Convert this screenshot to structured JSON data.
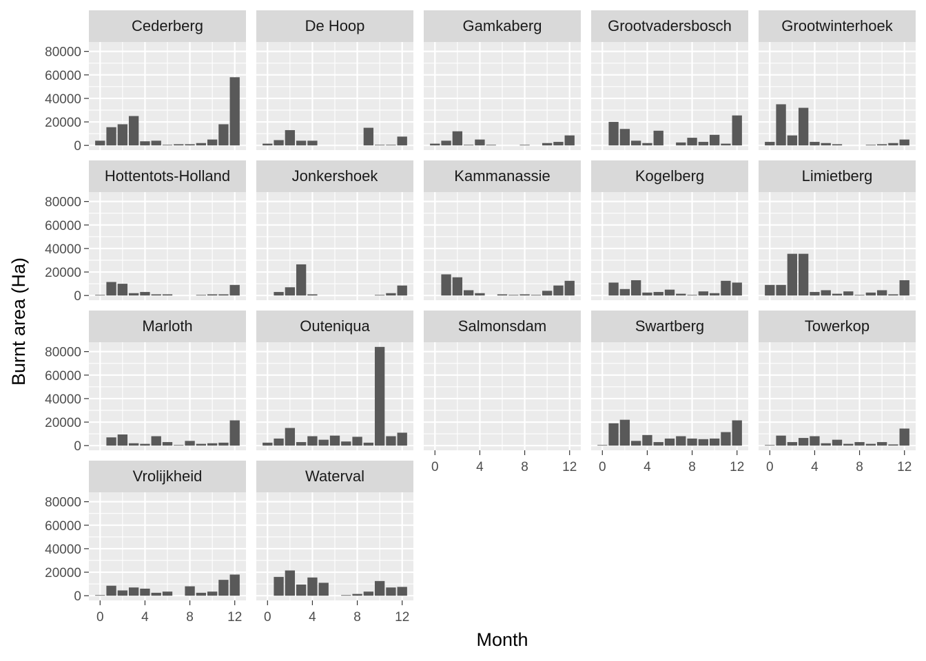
{
  "chart_data": {
    "type": "bar",
    "layout": "facet-grid",
    "xlabel": "Month",
    "ylabel": "Burnt area (Ha)",
    "xlim": [
      -1,
      13
    ],
    "ylim": [
      -4000,
      88000
    ],
    "x_ticks": [
      0,
      4,
      8,
      12
    ],
    "y_ticks": [
      0,
      20000,
      40000,
      60000,
      80000
    ],
    "grid": true,
    "colors": {
      "bar": "#595959",
      "panel": "#ebebeb",
      "strip": "#d9d9d9",
      "grid": "#ffffff"
    },
    "panels": [
      {
        "name": "Cederberg",
        "values": [
          4000,
          15500,
          18000,
          25000,
          3500,
          4000,
          500,
          1000,
          1000,
          2000,
          5000,
          18000,
          58000
        ]
      },
      {
        "name": "De Hoop",
        "values": [
          1500,
          4500,
          13000,
          4000,
          4000,
          0,
          0,
          0,
          0,
          15000,
          500,
          500,
          7500
        ]
      },
      {
        "name": "Gamkaberg",
        "values": [
          1500,
          4000,
          12000,
          500,
          5000,
          500,
          0,
          0,
          500,
          0,
          2000,
          3000,
          8500
        ]
      },
      {
        "name": "Grootvadersbosch",
        "values": [
          0,
          20000,
          14000,
          4000,
          2000,
          12500,
          0,
          2500,
          6500,
          3000,
          9000,
          1500,
          25500
        ]
      },
      {
        "name": "Grootwinterhoek",
        "values": [
          3000,
          35000,
          8500,
          32000,
          3000,
          2000,
          1000,
          0,
          0,
          500,
          1000,
          2000,
          5000
        ]
      },
      {
        "name": "Hottentots-Holland",
        "values": [
          500,
          11500,
          10000,
          2000,
          3000,
          1000,
          1000,
          0,
          0,
          500,
          1000,
          1000,
          9000
        ]
      },
      {
        "name": "Jonkershoek",
        "values": [
          0,
          3000,
          7000,
          26500,
          1000,
          0,
          0,
          0,
          0,
          0,
          500,
          2000,
          8500
        ]
      },
      {
        "name": "Kammanassie",
        "values": [
          0,
          18000,
          15500,
          4500,
          2000,
          0,
          1000,
          500,
          1000,
          500,
          4000,
          8500,
          12500
        ]
      },
      {
        "name": "Kogelberg",
        "values": [
          0,
          11000,
          5500,
          13000,
          2500,
          3000,
          5000,
          1500,
          500,
          3500,
          2000,
          12500,
          11000
        ]
      },
      {
        "name": "Limietberg",
        "values": [
          9000,
          9000,
          35500,
          35500,
          3000,
          4500,
          1500,
          3500,
          500,
          2500,
          4500,
          1000,
          13000
        ]
      },
      {
        "name": "Marloth",
        "values": [
          0,
          7000,
          9500,
          2000,
          1500,
          8000,
          3000,
          500,
          4000,
          1500,
          2000,
          2500,
          21500
        ]
      },
      {
        "name": "Outeniqua",
        "values": [
          2500,
          6000,
          15000,
          3000,
          8000,
          5000,
          8500,
          3500,
          7500,
          2500,
          84000,
          8000,
          11000
        ]
      },
      {
        "name": "Salmonsdam",
        "values": [
          0,
          0,
          0,
          0,
          0,
          0,
          0,
          0,
          0,
          0,
          0,
          0,
          0
        ]
      },
      {
        "name": "Swartberg",
        "values": [
          500,
          19000,
          22000,
          4000,
          9000,
          3000,
          6000,
          8000,
          6000,
          5500,
          6000,
          11500,
          21500
        ]
      },
      {
        "name": "Towerkop",
        "values": [
          500,
          8500,
          3000,
          6500,
          8000,
          2000,
          5000,
          1500,
          3000,
          1500,
          3000,
          1000,
          14500
        ]
      },
      {
        "name": "Vrolijkheid",
        "values": [
          500,
          8500,
          4500,
          7000,
          6000,
          2500,
          3500,
          0,
          8000,
          2500,
          3500,
          13500,
          18000
        ]
      },
      {
        "name": "Waterval",
        "values": [
          0,
          16000,
          21500,
          9500,
          15500,
          11000,
          0,
          500,
          1500,
          3500,
          12500,
          7000,
          7500
        ]
      }
    ]
  }
}
